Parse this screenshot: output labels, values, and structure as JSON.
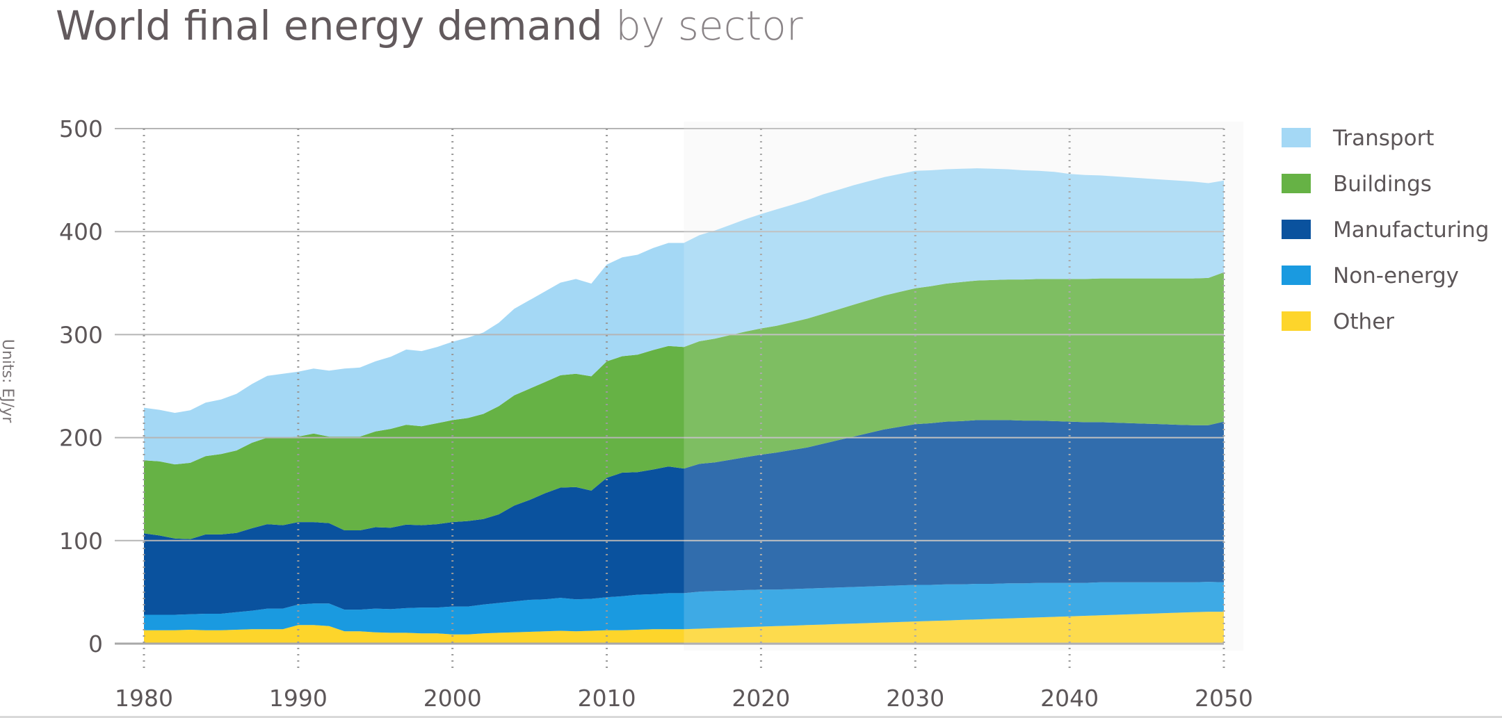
{
  "chart_data": {
    "type": "area",
    "stacked": true,
    "title": "World final energy demand",
    "subtitle": "by sector",
    "ylabel": "Units: EJ/yr",
    "xlabel": "",
    "xlim": [
      1980,
      2050
    ],
    "ylim": [
      0,
      500
    ],
    "x_ticks": [
      1980,
      1990,
      2000,
      2010,
      2020,
      2030,
      2040,
      2050
    ],
    "y_ticks": [
      0,
      100,
      200,
      300,
      400,
      500
    ],
    "forecast_start": 2015,
    "grid": true,
    "legend_position": "right",
    "x": [
      1980,
      1981,
      1982,
      1983,
      1984,
      1985,
      1986,
      1987,
      1988,
      1989,
      1990,
      1991,
      1992,
      1993,
      1994,
      1995,
      1996,
      1997,
      1998,
      1999,
      2000,
      2001,
      2002,
      2003,
      2004,
      2005,
      2006,
      2007,
      2008,
      2009,
      2010,
      2011,
      2012,
      2013,
      2014,
      2015,
      2016,
      2017,
      2018,
      2019,
      2020,
      2021,
      2022,
      2023,
      2024,
      2025,
      2026,
      2027,
      2028,
      2029,
      2030,
      2031,
      2032,
      2033,
      2034,
      2035,
      2036,
      2037,
      2038,
      2039,
      2040,
      2041,
      2042,
      2043,
      2044,
      2045,
      2046,
      2047,
      2048,
      2049,
      2050
    ],
    "series": [
      {
        "name": "Other",
        "color": "#fdd52b",
        "values": [
          13,
          13,
          13,
          13.5,
          13,
          13,
          13.5,
          14,
          14,
          14,
          18,
          18,
          17,
          12,
          12,
          11,
          10.5,
          10.5,
          10,
          10,
          9,
          9,
          10,
          10.5,
          11,
          11.5,
          12,
          12.5,
          12,
          12.5,
          13,
          13,
          13.5,
          14,
          14,
          14,
          14.5,
          15,
          15.5,
          16,
          16.5,
          17,
          17.5,
          18,
          18.5,
          19,
          19.5,
          20,
          20.5,
          21,
          21.5,
          22,
          22.5,
          23,
          23.5,
          24,
          24.5,
          25,
          25.5,
          26,
          26.5,
          27,
          27.5,
          28,
          28.5,
          29,
          29.5,
          30,
          30.5,
          31,
          31
        ]
      },
      {
        "name": "Non-energy",
        "color": "#1a9ae0",
        "values": [
          15,
          15,
          15,
          15,
          16,
          16,
          17,
          18,
          20,
          20,
          20,
          21,
          22,
          21,
          21,
          23,
          23,
          24,
          25,
          25,
          27,
          27,
          28,
          29,
          30,
          31,
          31,
          32,
          31,
          31,
          32,
          33,
          34,
          34,
          35,
          35,
          36,
          36,
          36,
          36,
          36,
          35.5,
          35.5,
          35.5,
          35.5,
          35.5,
          35.5,
          35.5,
          35.5,
          35.5,
          35.5,
          35,
          35,
          34.5,
          34.5,
          34,
          34,
          33.5,
          33.5,
          33,
          32.5,
          32,
          32,
          31.5,
          31,
          30.5,
          30,
          29.5,
          29,
          29,
          28.5
        ]
      },
      {
        "name": "Manufacturing",
        "color": "#0a529e",
        "values": [
          79,
          77,
          74,
          73,
          77,
          77,
          77,
          80,
          82,
          81,
          80,
          79,
          78,
          77,
          77,
          79,
          79,
          81,
          80,
          81,
          82,
          83,
          83,
          86,
          93,
          97,
          103,
          107,
          109,
          105,
          116,
          120,
          119,
          121,
          123,
          121,
          124,
          125,
          127,
          129,
          131,
          133,
          135,
          137,
          140,
          143,
          146,
          149,
          152,
          154,
          156,
          157,
          158,
          158.5,
          159,
          159,
          158.5,
          158,
          157.5,
          157,
          156.5,
          156,
          155.5,
          155,
          154.5,
          154,
          153.5,
          153,
          152.5,
          152,
          156
        ]
      },
      {
        "name": "Buildings",
        "color": "#66b245",
        "values": [
          71,
          72,
          72,
          74,
          76,
          78,
          80,
          83,
          84,
          85,
          83,
          86,
          84,
          91,
          91,
          93,
          96,
          97,
          96,
          98,
          99,
          100,
          102,
          105,
          107,
          108,
          108,
          109,
          110,
          111,
          113,
          113,
          114,
          116,
          117,
          118,
          119,
          120,
          121,
          122,
          122.5,
          123,
          124,
          125,
          126,
          127,
          128,
          129,
          130,
          131,
          132,
          133,
          134,
          135,
          135.5,
          136,
          136.5,
          137,
          137.5,
          138,
          138.5,
          139,
          139.5,
          140,
          140.5,
          141,
          141.5,
          142,
          142.5,
          143,
          145
        ]
      },
      {
        "name": "Transport",
        "color": "#a4d8f5",
        "values": [
          51,
          50,
          50,
          51,
          52,
          53,
          55,
          57,
          60,
          62,
          63,
          63,
          64,
          66,
          67,
          68,
          70,
          73,
          73,
          74,
          76,
          78,
          79,
          81,
          84,
          86,
          88,
          90,
          92,
          90,
          94,
          96,
          97,
          99,
          100,
          101,
          103,
          105,
          107,
          109,
          111,
          113,
          114,
          115,
          116,
          116,
          116,
          115.5,
          115,
          114.5,
          114,
          112.5,
          111,
          110,
          109,
          108,
          107,
          106,
          105,
          104,
          102,
          101,
          100,
          99,
          98,
          97,
          96,
          95,
          94,
          92,
          89
        ]
      }
    ]
  }
}
